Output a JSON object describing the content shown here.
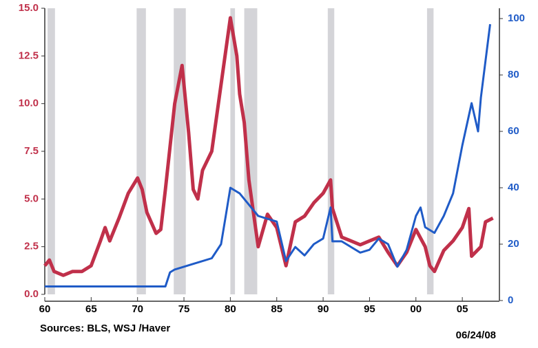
{
  "chart_data": {
    "type": "line",
    "footnote": "Sources:  BLS, WSJ /Haver",
    "date_stamp": "06/24/08",
    "recessions": [
      [
        1960.3,
        1961.1
      ],
      [
        1969.9,
        1970.9
      ],
      [
        1973.9,
        1975.2
      ],
      [
        1980.0,
        1980.5
      ],
      [
        1981.5,
        1982.9
      ],
      [
        1990.5,
        1991.2
      ],
      [
        2001.2,
        2001.9
      ]
    ],
    "recession_color": "#d4d4d8",
    "xlim": [
      1960,
      2009
    ],
    "xticks": [
      {
        "value": 1960,
        "label": "60"
      },
      {
        "value": 1965,
        "label": "65"
      },
      {
        "value": 1970,
        "label": "70"
      },
      {
        "value": 1975,
        "label": "75"
      },
      {
        "value": 1980,
        "label": "80"
      },
      {
        "value": 1985,
        "label": "85"
      },
      {
        "value": 1990,
        "label": "90"
      },
      {
        "value": 1995,
        "label": "95"
      },
      {
        "value": 2000,
        "label": "00"
      },
      {
        "value": 2005,
        "label": "05"
      }
    ],
    "ylim": [
      0,
      15
    ],
    "yticks": [
      {
        "value": 0,
        "label": "0.0"
      },
      2.5,
      {
        "value": 5,
        "label": "5.0"
      },
      7.5,
      {
        "value": 10,
        "label": "10.0"
      },
      12.5,
      {
        "value": 15,
        "label": "15.0"
      }
    ],
    "y2lim": [
      0,
      100
    ],
    "y2ticks": [
      0,
      20,
      40,
      60,
      80,
      100
    ],
    "series": [
      {
        "color": "#c0304a",
        "axis": "y",
        "x": [
          1960,
          1960.5,
          1961,
          1962,
          1963,
          1964,
          1965,
          1966,
          1966.5,
          1967,
          1968,
          1969,
          1970,
          1970.5,
          1971,
          1972,
          1972.5,
          1973,
          1974,
          1974.8,
          1975.5,
          1976,
          1976.5,
          1977,
          1978,
          1979,
          1980,
          1980.7,
          1981,
          1981.5,
          1982,
          1983,
          1984,
          1985,
          1986,
          1987,
          1988,
          1989,
          1990,
          1990.8,
          1991,
          1992,
          1993,
          1994,
          1995,
          1996,
          1997,
          1998,
          1999,
          2000,
          2001,
          2001.5,
          2002,
          2003,
          2004,
          2005,
          2005.7,
          2006,
          2007,
          2007.5,
          2008.3
        ],
        "values": [
          1.5,
          1.8,
          1.2,
          1.0,
          1.2,
          1.2,
          1.5,
          2.8,
          3.5,
          2.8,
          4.0,
          5.3,
          6.1,
          5.5,
          4.3,
          3.2,
          3.4,
          5.5,
          10,
          12,
          8.5,
          5.5,
          5.0,
          6.5,
          7.5,
          11,
          14.5,
          12.5,
          10.5,
          9,
          6,
          2.5,
          4.2,
          3.5,
          1.5,
          3.8,
          4.1,
          4.8,
          5.3,
          6,
          4.5,
          3,
          2.8,
          2.6,
          2.8,
          3,
          2.2,
          1.5,
          2.2,
          3.4,
          2.5,
          1.5,
          1.2,
          2.3,
          2.8,
          3.5,
          4.5,
          2,
          2.5,
          3.8,
          4.0
        ]
      },
      {
        "color": "#1f5bc7",
        "axis": "y2",
        "x": [
          1960,
          1973,
          1973.5,
          1974,
          1976,
          1978,
          1979,
          1979.5,
          1980,
          1981,
          1982,
          1983,
          1985,
          1986,
          1987,
          1988,
          1989,
          1990,
          1990.8,
          1991,
          1992,
          1993,
          1994,
          1995,
          1996,
          1997,
          1998,
          1999,
          2000,
          2000.5,
          2001,
          2002,
          2003,
          2004,
          2005,
          2006,
          2006.7,
          2007,
          2008
        ],
        "values": [
          5,
          5,
          10,
          11,
          13,
          15,
          20,
          30,
          40,
          38,
          34,
          30,
          28,
          14,
          19,
          16,
          20,
          22,
          33,
          21,
          21,
          19,
          17,
          18,
          22,
          20,
          12,
          18,
          30,
          33,
          26,
          24,
          30,
          38,
          55,
          70,
          60,
          72,
          98
        ]
      }
    ]
  }
}
